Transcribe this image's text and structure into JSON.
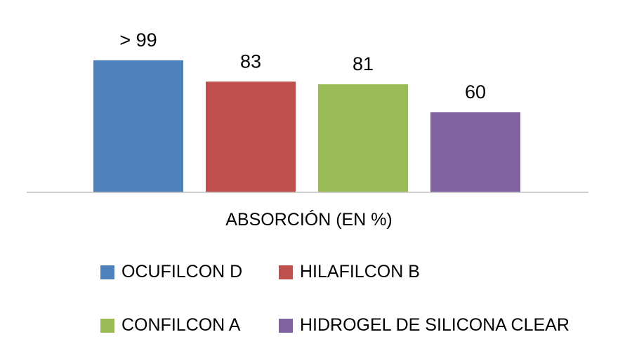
{
  "chart_data": {
    "type": "bar",
    "categories": [
      "OCUFILCON D",
      "HILAFILCON B",
      "CONFILCON A",
      "HIDROGEL DE SILICONA CLEAR"
    ],
    "values": [
      99,
      83,
      81,
      60
    ],
    "data_labels": [
      "> 99",
      "83",
      "81",
      "60"
    ],
    "colors": [
      "#4f81bd",
      "#c0504d",
      "#9bbb59",
      "#8064a2"
    ],
    "xlabel": "ABSORCIÓN (EN %)",
    "ylabel": "",
    "ylim": [
      0,
      100
    ],
    "grid": false,
    "legend_placement": "bottom"
  }
}
